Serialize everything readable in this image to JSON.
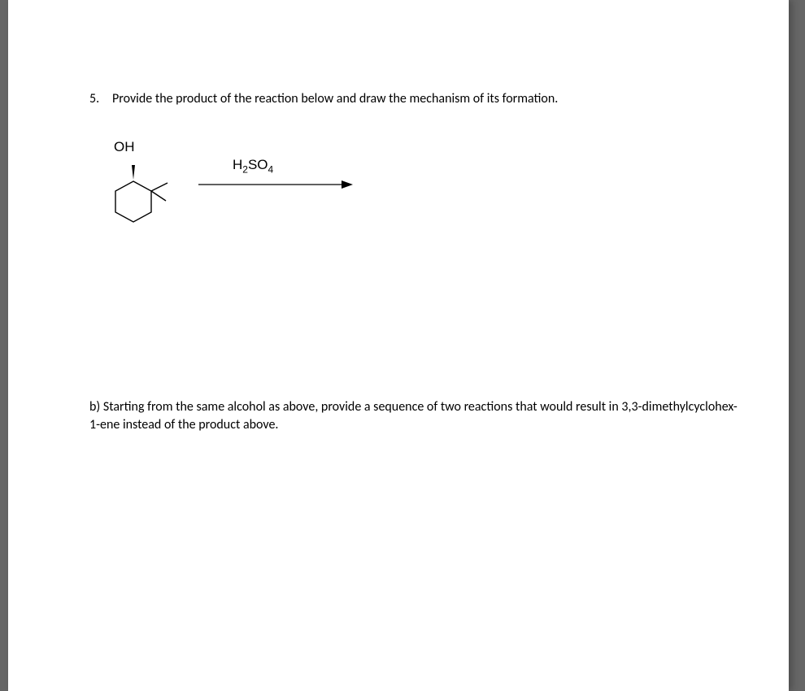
{
  "question": {
    "number": "5.",
    "text": "Provide the product of the reaction below and draw the mechanism of its formation."
  },
  "reaction": {
    "oh_label": "OH",
    "reagent_html": "H<sub>2</sub>SO<sub>4</sub>"
  },
  "part_b": {
    "text": "b) Starting from the same alcohol as above, provide a sequence of two reactions that would result in 3,3-dimethylcyclohex-1-ene instead of the product above."
  },
  "style": {
    "page_bg": "#ffffff",
    "text_color": "#000000",
    "font_size_body": 16,
    "font_size_chem": 17,
    "line_stroke": "#000000",
    "line_width_mol": 1.4,
    "line_width_arrow": 1.2,
    "wedge_fill": "#000000"
  }
}
